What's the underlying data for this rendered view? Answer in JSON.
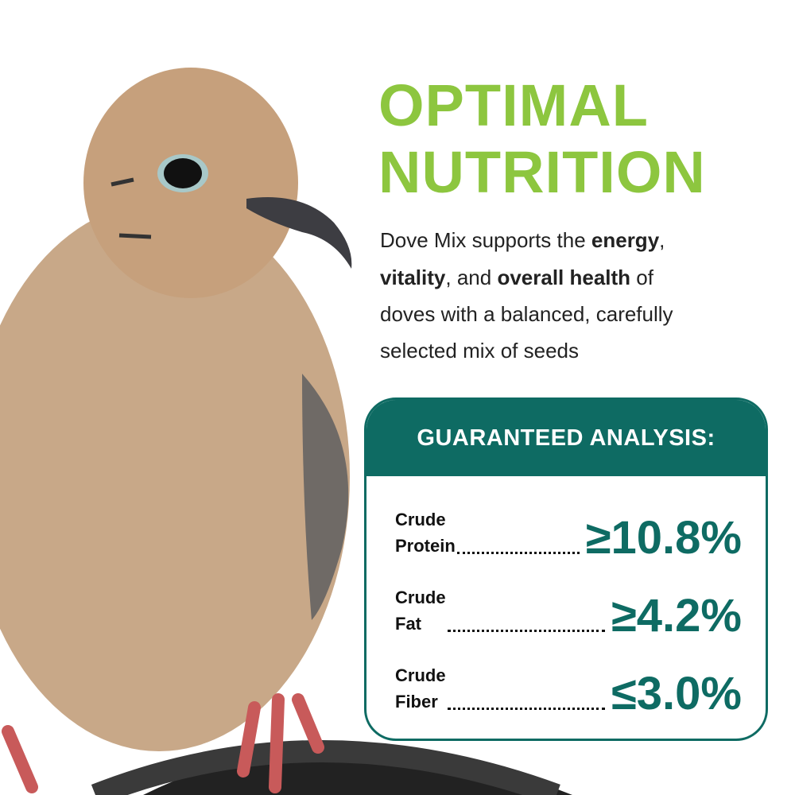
{
  "heading": [
    "OPTIMAL",
    "NUTRITION"
  ],
  "description": [
    [
      "Dove Mix supports the ",
      "energy",
      ","
    ],
    [
      "vitality",
      ", and ",
      "overall health",
      " of"
    ],
    [
      "doves with a balanced, carefully"
    ],
    [
      "selected mix of seeds"
    ]
  ],
  "analysis": {
    "title": "GUARANTEED ANALYSIS:",
    "rows": [
      {
        "label": [
          "Crude",
          "Protein"
        ],
        "value": "≥10.8%"
      },
      {
        "label": [
          "Crude",
          "Fat"
        ],
        "value": "≥4.2%"
      },
      {
        "label": [
          "Crude",
          "Fiber"
        ],
        "value": "≤3.0%"
      }
    ]
  }
}
